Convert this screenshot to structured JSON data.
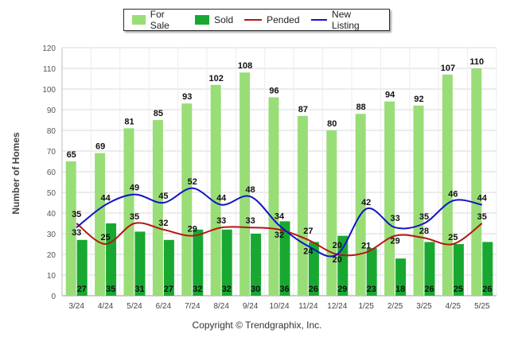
{
  "chart_data": {
    "type": "bar",
    "categories": [
      "3/24",
      "4/24",
      "5/24",
      "6/24",
      "7/24",
      "8/24",
      "9/24",
      "10/24",
      "11/24",
      "12/24",
      "1/25",
      "2/25",
      "3/25",
      "4/25",
      "5/25"
    ],
    "series": [
      {
        "name": "For Sale",
        "kind": "bar",
        "color": "#99dd77",
        "values": [
          65,
          69,
          81,
          85,
          93,
          102,
          108,
          96,
          87,
          80,
          88,
          94,
          92,
          107,
          110
        ]
      },
      {
        "name": "Sold",
        "kind": "bar",
        "color": "#18a831",
        "values": [
          27,
          35,
          31,
          27,
          32,
          32,
          30,
          36,
          26,
          29,
          23,
          18,
          26,
          25,
          26
        ]
      },
      {
        "name": "Pended",
        "kind": "line",
        "color": "#b81414",
        "values": [
          35,
          25,
          35,
          32,
          29,
          33,
          33,
          32,
          27,
          20,
          21,
          29,
          28,
          25,
          35
        ]
      },
      {
        "name": "New Listing",
        "kind": "line",
        "color": "#1313c8",
        "values": [
          33,
          44,
          49,
          45,
          52,
          44,
          48,
          34,
          24,
          20,
          42,
          33,
          35,
          46,
          44
        ]
      }
    ],
    "ylabel": "Number of Homes",
    "ylim": [
      0,
      120
    ],
    "yticks": [
      0,
      10,
      20,
      30,
      40,
      50,
      60,
      70,
      80,
      90,
      100,
      110,
      120
    ],
    "grid": true,
    "legend_position": "top"
  },
  "footer": "Copyright © Trendgraphix, Inc."
}
